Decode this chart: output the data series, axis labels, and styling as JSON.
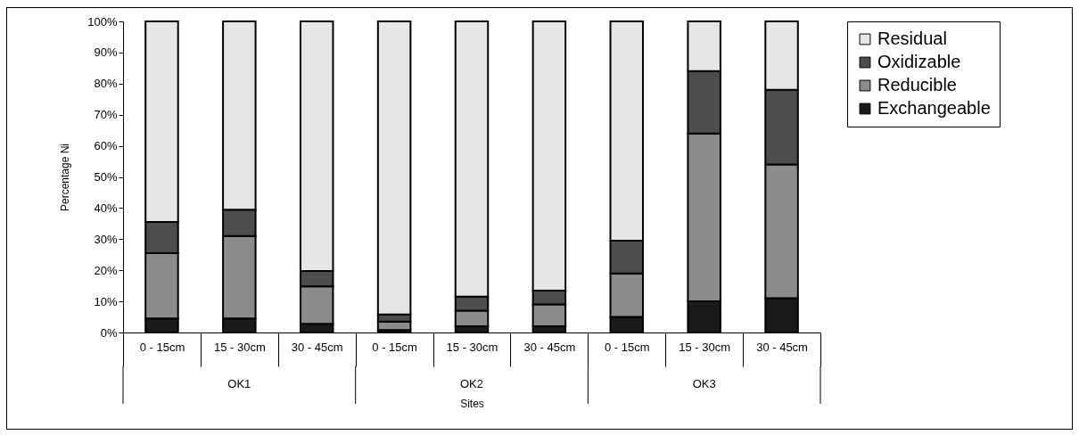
{
  "chart_data": {
    "type": "bar",
    "stacked": true,
    "xlabel": "Sites",
    "ylabel": "Percentage Ni",
    "legend": "right",
    "categories": [
      "0 - 15cm",
      "15 - 30cm",
      "30 - 45cm",
      "0 - 15cm",
      "15 - 30cm",
      "30 - 45cm",
      "0 - 15cm",
      "15 - 30cm",
      "30 - 45cm"
    ],
    "annotations": [
      "OK1",
      "OK2",
      "OK3"
    ],
    "ylim": [
      0,
      100
    ],
    "yticks": [
      {
        "value": 0,
        "label": "0%"
      },
      {
        "value": 10,
        "label": "10%"
      },
      {
        "value": 20,
        "label": "20%"
      },
      {
        "value": 30,
        "label": "30%"
      },
      {
        "value": 40,
        "label": "40%"
      },
      {
        "value": 50,
        "label": "50%"
      },
      {
        "value": 60,
        "label": "60%"
      },
      {
        "value": 70,
        "label": "70%"
      },
      {
        "value": 80,
        "label": "80%"
      },
      {
        "value": 90,
        "label": "90%"
      },
      {
        "value": 100,
        "label": "100%"
      }
    ],
    "series": [
      {
        "name": "Exchangeable",
        "color": "#1a1a1a",
        "values": [
          4.5,
          4.5,
          2.8,
          0.8,
          2,
          2,
          5,
          10,
          11
        ]
      },
      {
        "name": "Reducible",
        "color": "#8c8c8c",
        "values": [
          21,
          26.5,
          12,
          2.7,
          5,
          7,
          14,
          54,
          43
        ]
      },
      {
        "name": "Oxidizable",
        "color": "#4d4d4d",
        "values": [
          10,
          8.5,
          5,
          2.3,
          4.5,
          4.5,
          10.5,
          20,
          24
        ]
      },
      {
        "name": "Residual",
        "color": "#e6e6e6",
        "values": [
          64.5,
          60.5,
          80.2,
          94.2,
          88.5,
          86.5,
          70.5,
          16,
          22
        ]
      }
    ]
  }
}
